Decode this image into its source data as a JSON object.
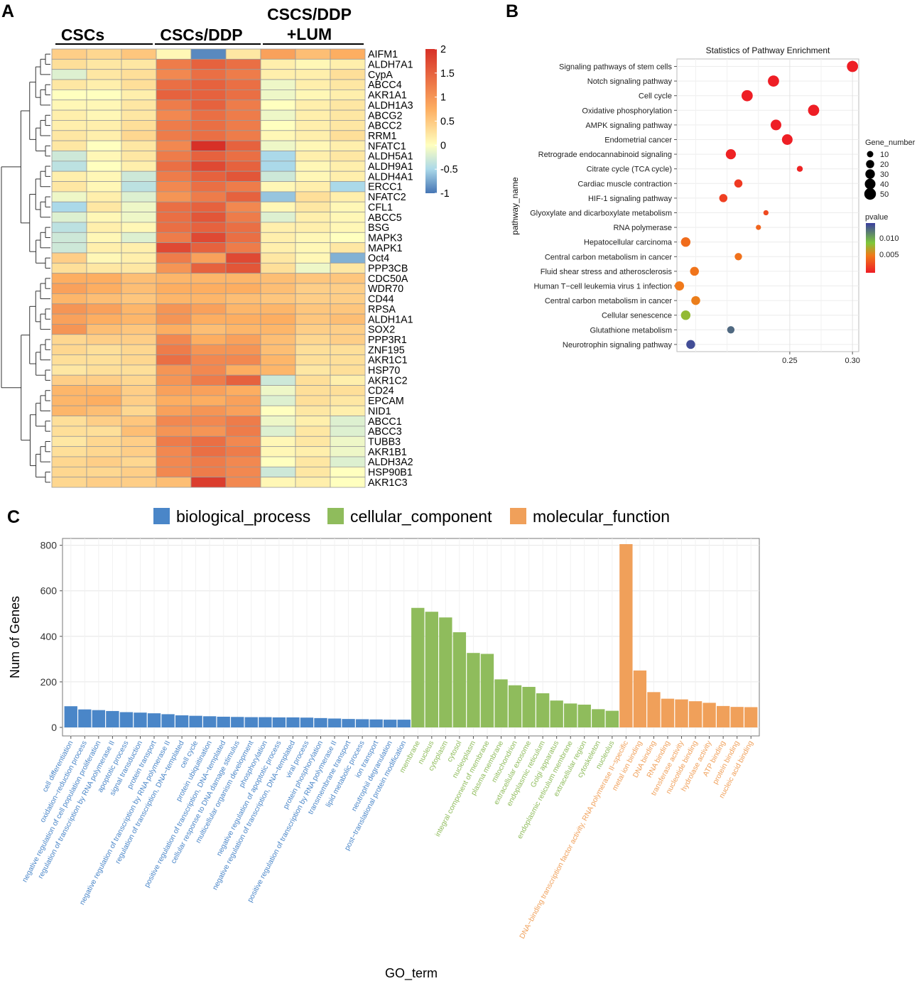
{
  "panels": {
    "a": "A",
    "b": "B",
    "c": "C"
  },
  "heatmap": {
    "type": "heatmap",
    "groups": [
      "CSCs",
      "CSCs/DDP",
      "CSCS/DDP",
      "+LUM"
    ],
    "genes": [
      "AIFM1",
      "ALDH7A1",
      "CypA",
      "ABCC4",
      "AKR1A1",
      "ALDH1A3",
      "ABCG2",
      "ABCC2",
      "RRM1",
      "NFATC1",
      "ALDH5A1",
      "ALDH9A1",
      "ALDH4A1",
      "ERCC1",
      "NFATC2",
      "CFL1",
      "ABCC5",
      "BSG",
      "MAPK3",
      "MAPK1",
      "Oct4",
      "PPP3CB",
      "CDC50A",
      "WDR70",
      "CD44",
      "RPSA",
      "ALDH1A1",
      "SOX2",
      "PPP3R1",
      "ZNF195",
      "AKR1C1",
      "HSP70",
      "AKR1C2",
      "CD24",
      "EPCAM",
      "NID1",
      "ABCC1",
      "ABCC3",
      "TUBB3",
      "AKR1B1",
      "ALDH3A2",
      "HSP90B1",
      "AKR1C3"
    ],
    "values": [
      [
        0.6,
        0.5,
        0.7,
        0.1,
        -0.9,
        0.3,
        1.1,
        0.8,
        1.0
      ],
      [
        0.4,
        0.3,
        0.3,
        1.4,
        1.6,
        1.5,
        0.2,
        0.1,
        0.2
      ],
      [
        -0.2,
        0.3,
        0.4,
        1.3,
        1.5,
        1.4,
        0.2,
        0.2,
        0.4
      ],
      [
        0.3,
        0.2,
        0.4,
        1.5,
        1.6,
        1.5,
        -0.1,
        0.2,
        0.3
      ],
      [
        0.0,
        0.0,
        0.2,
        1.6,
        1.6,
        1.5,
        -0.1,
        0.1,
        0.2
      ],
      [
        0.1,
        0.1,
        0.3,
        1.4,
        1.6,
        1.4,
        0.0,
        0.2,
        0.3
      ],
      [
        0.2,
        0.1,
        0.3,
        1.3,
        1.5,
        1.4,
        -0.1,
        0.2,
        0.3
      ],
      [
        0.2,
        0.2,
        0.4,
        1.4,
        1.5,
        1.4,
        0.0,
        0.2,
        0.3
      ],
      [
        0.3,
        0.2,
        0.5,
        1.4,
        1.5,
        1.4,
        0.1,
        0.2,
        0.4
      ],
      [
        0.3,
        0.0,
        0.3,
        1.3,
        2.0,
        1.6,
        -0.1,
        0.1,
        0.2
      ],
      [
        -0.3,
        0.1,
        0.3,
        1.4,
        1.6,
        1.5,
        -0.5,
        0.2,
        0.3
      ],
      [
        -0.4,
        0.0,
        0.2,
        1.5,
        1.8,
        1.6,
        -0.5,
        0.1,
        0.2
      ],
      [
        0.2,
        0.1,
        -0.3,
        1.4,
        1.6,
        1.7,
        -0.3,
        0.1,
        0.2
      ],
      [
        0.3,
        0.1,
        -0.4,
        1.3,
        1.5,
        1.4,
        0.1,
        0.2,
        -0.5
      ],
      [
        -0.1,
        0.2,
        -0.2,
        1.2,
        1.4,
        1.6,
        -0.6,
        0.4,
        0.2
      ],
      [
        -0.5,
        0.3,
        -0.1,
        1.5,
        1.6,
        1.3,
        0.1,
        0.3,
        0.1
      ],
      [
        -0.2,
        0.1,
        -0.1,
        1.5,
        1.7,
        1.4,
        -0.2,
        0.2,
        0.1
      ],
      [
        -0.4,
        0.2,
        0.1,
        1.5,
        1.6,
        1.5,
        0.2,
        0.2,
        0.1
      ],
      [
        -0.3,
        0.1,
        -0.2,
        1.4,
        1.8,
        1.5,
        0.2,
        0.1,
        0.0
      ],
      [
        -0.3,
        0.2,
        0.2,
        1.8,
        1.6,
        1.4,
        0.2,
        0.1,
        0.3
      ],
      [
        0.6,
        0.1,
        0.2,
        1.4,
        1.1,
        1.8,
        0.3,
        0.1,
        -0.7
      ],
      [
        0.4,
        0.3,
        0.3,
        1.2,
        1.6,
        1.7,
        0.4,
        -0.1,
        0.3
      ],
      [
        1.0,
        1.0,
        0.8,
        0.9,
        0.9,
        0.9,
        0.8,
        0.7,
        0.7
      ],
      [
        1.1,
        1.0,
        0.8,
        1.0,
        1.0,
        1.0,
        0.8,
        0.6,
        0.6
      ],
      [
        0.9,
        0.8,
        0.7,
        0.9,
        0.9,
        0.8,
        0.7,
        0.6,
        0.6
      ],
      [
        1.2,
        1.1,
        0.9,
        1.2,
        1.1,
        0.9,
        0.9,
        0.7,
        0.7
      ],
      [
        1.1,
        1.0,
        0.9,
        1.2,
        1.0,
        1.0,
        1.0,
        0.7,
        0.8
      ],
      [
        1.2,
        0.8,
        0.7,
        1.0,
        0.8,
        0.9,
        0.9,
        0.6,
        0.6
      ],
      [
        0.5,
        0.6,
        0.6,
        1.3,
        1.0,
        1.1,
        0.8,
        0.5,
        0.6
      ],
      [
        0.5,
        0.4,
        0.5,
        1.4,
        1.2,
        1.2,
        0.8,
        0.4,
        0.4
      ],
      [
        0.4,
        0.4,
        0.5,
        1.5,
        1.3,
        1.3,
        0.9,
        0.4,
        0.4
      ],
      [
        0.3,
        0.4,
        0.4,
        1.2,
        1.3,
        1.0,
        0.9,
        0.3,
        0.4
      ],
      [
        0.6,
        0.6,
        0.5,
        1.2,
        1.4,
        1.6,
        -0.3,
        0.4,
        0.2
      ],
      [
        0.9,
        0.9,
        0.6,
        1.1,
        1.1,
        1.0,
        -0.1,
        0.4,
        0.4
      ],
      [
        0.9,
        1.0,
        0.6,
        1.0,
        1.0,
        1.1,
        -0.2,
        0.4,
        0.3
      ],
      [
        0.9,
        0.8,
        0.5,
        1.1,
        1.2,
        1.1,
        0.0,
        0.3,
        0.2
      ],
      [
        0.4,
        0.6,
        0.7,
        1.3,
        1.3,
        1.4,
        -0.1,
        0.2,
        -0.2
      ],
      [
        0.4,
        0.4,
        0.8,
        1.2,
        1.2,
        1.4,
        -0.2,
        0.3,
        -0.2
      ],
      [
        0.3,
        0.5,
        0.6,
        1.4,
        1.5,
        1.3,
        0.1,
        0.3,
        -0.1
      ],
      [
        0.4,
        0.5,
        0.6,
        1.3,
        1.5,
        1.4,
        0.1,
        0.2,
        -0.1
      ],
      [
        0.5,
        0.6,
        0.5,
        1.3,
        1.4,
        1.3,
        0.0,
        0.3,
        -0.2
      ],
      [
        0.5,
        0.5,
        0.6,
        1.3,
        1.4,
        1.3,
        -0.3,
        0.3,
        0.0
      ],
      [
        0.5,
        0.6,
        0.6,
        0.8,
        1.9,
        1.3,
        0.1,
        0.2,
        0.0
      ]
    ],
    "colorbar": {
      "ticks": [
        "2",
        "1.5",
        "1",
        "0.5",
        "0",
        "-0.5",
        "-1"
      ],
      "range": [
        -1,
        2
      ]
    },
    "colors": {
      "low": "#4575b4",
      "mid": "#ffffbf",
      "high": "#d73027"
    }
  },
  "dotplot": {
    "type": "scatter",
    "title": "Statistics of Pathway Enrichment",
    "ylabel": "pathway_name",
    "xticks": [
      "0.25",
      "0.30"
    ],
    "xlim": [
      0.16,
      0.305
    ],
    "pathways": [
      "Signaling pathways of stem cells",
      "Notch signaling pathway",
      "Cell cycle",
      "Oxidative phosphorylation",
      "AMPK signaling pathway",
      "Endometrial cancer",
      "Retrograde endocannabinoid signaling",
      "Citrate cycle (TCA cycle)",
      "Cardiac muscle contraction",
      "HIF-1 signaling pathway",
      "Glyoxylate and dicarboxylate metabolism",
      "RNA polymerase",
      "Hepatocellular carcinoma",
      "Central carbon metabolism in cancer",
      "Fluid shear stress and atherosclerosis",
      "Human T−cell leukemia virus 1 infection",
      "Central carbon metabolism in cancer",
      "Cellular senescence",
      "Glutathione metabolism",
      "Neurotrophin signaling pathway"
    ],
    "rich_factor": [
      0.3,
      0.237,
      0.216,
      0.269,
      0.239,
      0.248,
      0.203,
      0.258,
      0.209,
      0.197,
      0.231,
      0.225,
      0.167,
      0.209,
      0.174,
      0.162,
      0.175,
      0.167,
      0.203,
      0.171
    ],
    "gene_number": [
      45,
      45,
      45,
      45,
      40,
      40,
      35,
      8,
      20,
      20,
      5,
      5,
      30,
      15,
      25,
      28,
      25,
      30,
      15,
      25
    ],
    "pvalue": [
      0.0001,
      0.0001,
      0.0001,
      0.0001,
      0.0001,
      0.0002,
      0.0004,
      0.0005,
      0.0018,
      0.0022,
      0.0028,
      0.0045,
      0.005,
      0.0053,
      0.0055,
      0.0058,
      0.006,
      0.0085,
      0.0118,
      0.0126
    ],
    "size_legend": {
      "title": "Gene_number",
      "values": [
        "10",
        "20",
        "30",
        "40",
        "50"
      ]
    },
    "color_legend": {
      "title": "pvalue",
      "ticks": [
        "0.010",
        "0.005"
      ]
    },
    "colors": {
      "low": "#ee1c25",
      "mid": "#7ec83a",
      "high": "#3b3fa0"
    }
  },
  "gochart": {
    "type": "bar",
    "xlabel": "GO_term",
    "ylabel": "Num of Genes",
    "ylim": [
      0,
      830
    ],
    "yticks": [
      "0",
      "200",
      "400",
      "600",
      "800"
    ],
    "legend": [
      {
        "name": "biological_process",
        "color": "#4a86c8"
      },
      {
        "name": "cellular_component",
        "color": "#8fbc5c"
      },
      {
        "name": "molecular_function",
        "color": "#f0a05a"
      }
    ],
    "categories": [
      "cell differentiation",
      "oxidation−reduction process",
      "negative regulation of cell population proliferation",
      "regulation of transcription by RNA polymerase II",
      "apoptotic process",
      "signal transduction",
      "protein transport",
      "negative regulation of transcription by RNA polymerase II",
      "regulation of transcription, DNA−templated",
      "cell cycle",
      "protein ubiquitination",
      "positive regulation of transcription, DNA−templated",
      "cellular response to DNA damage stimulus",
      "multicellular organism development",
      "phosphorylation",
      "negative regulation of apoptotic process",
      "negative regulation of transcription, DNA−templated",
      "viral process",
      "protein phosphorylation",
      "positive regulation of transcription by RNA polymerase II",
      "transmembrane transport",
      "lipid metabolic process",
      "ion transport",
      "neutrophil degranulation",
      "post−translational protein modification",
      "membrane",
      "nucleus",
      "cytoplasm",
      "cytosol",
      "nucleoplasm",
      "integral component of membrane",
      "plasma membrane",
      "mitochondrion",
      "extracellular exosome",
      "endoplasmic reticulum",
      "Golgi apparatus",
      "endoplasmic reticulum membrane",
      "extracellular region",
      "cytoskeleton",
      "nucleolus",
      "DNA−binding transcription factor activity, RNA polymerase II−specific",
      "metal ion binding",
      "DNA binding",
      "RNA binding",
      "transferase activity",
      "nucleotide binding",
      "hydrolase activity",
      "ATP binding",
      "protein binding",
      "nucleic acid binding"
    ],
    "values": [
      93,
      79,
      76,
      72,
      67,
      65,
      62,
      58,
      53,
      51,
      49,
      47,
      46,
      45,
      45,
      44,
      44,
      43,
      41,
      39,
      37,
      36,
      35,
      34,
      34,
      525,
      508,
      483,
      418,
      327,
      323,
      211,
      185,
      178,
      150,
      118,
      105,
      100,
      80,
      73,
      805,
      250,
      155,
      126,
      123,
      115,
      108,
      94,
      90,
      89
    ],
    "groups": [
      0,
      0,
      0,
      0,
      0,
      0,
      0,
      0,
      0,
      0,
      0,
      0,
      0,
      0,
      0,
      0,
      0,
      0,
      0,
      0,
      0,
      0,
      0,
      0,
      0,
      1,
      1,
      1,
      1,
      1,
      1,
      1,
      1,
      1,
      1,
      1,
      1,
      1,
      1,
      1,
      2,
      2,
      2,
      2,
      2,
      2,
      2,
      2,
      2,
      2
    ]
  }
}
